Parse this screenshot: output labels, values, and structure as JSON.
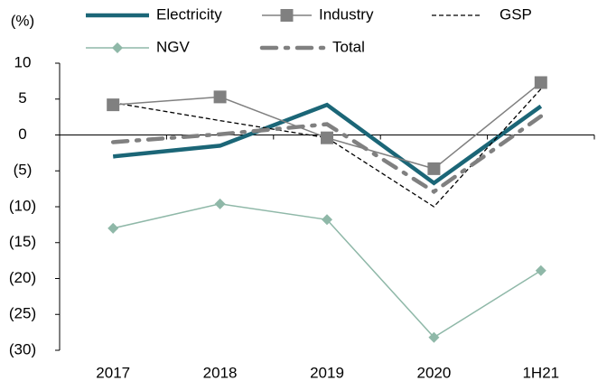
{
  "chart_data": {
    "type": "line",
    "y_axis_label": "(%)",
    "categories": [
      "2017",
      "2018",
      "2019",
      "2020",
      "1H21"
    ],
    "series": [
      {
        "name": "Electricity",
        "color": "#1b6677",
        "style": "solid-thick",
        "values": [
          -3,
          -1.5,
          4.2,
          -6.7,
          4
        ]
      },
      {
        "name": "Industry",
        "color": "#808080",
        "style": "solid-square",
        "values": [
          4.2,
          5.3,
          -0.4,
          -4.7,
          7.3
        ]
      },
      {
        "name": "GSP",
        "color": "#000000",
        "style": "dashed",
        "values": [
          4.5,
          2,
          -0.4,
          -10,
          6.4
        ]
      },
      {
        "name": "NGV",
        "color": "#8fb8a8",
        "style": "solid-diamond",
        "values": [
          -13,
          -9.6,
          -11.8,
          -28.2,
          -18.9
        ]
      },
      {
        "name": "Total",
        "color": "#808080",
        "style": "dashdot-thick",
        "values": [
          -1,
          0.1,
          1.5,
          -7.9,
          2.6
        ]
      }
    ],
    "ylim": [
      -30,
      10
    ],
    "yticks": [
      10,
      5,
      0,
      {
        "value": -5,
        "label": "(5)"
      },
      {
        "value": -10,
        "label": "(10)"
      },
      {
        "value": -15,
        "label": "(15)"
      },
      {
        "value": -20,
        "label": "(20)"
      },
      {
        "value": -25,
        "label": "(25)"
      },
      {
        "value": -30,
        "label": "(30)"
      }
    ],
    "legend": "top",
    "grid": false
  }
}
